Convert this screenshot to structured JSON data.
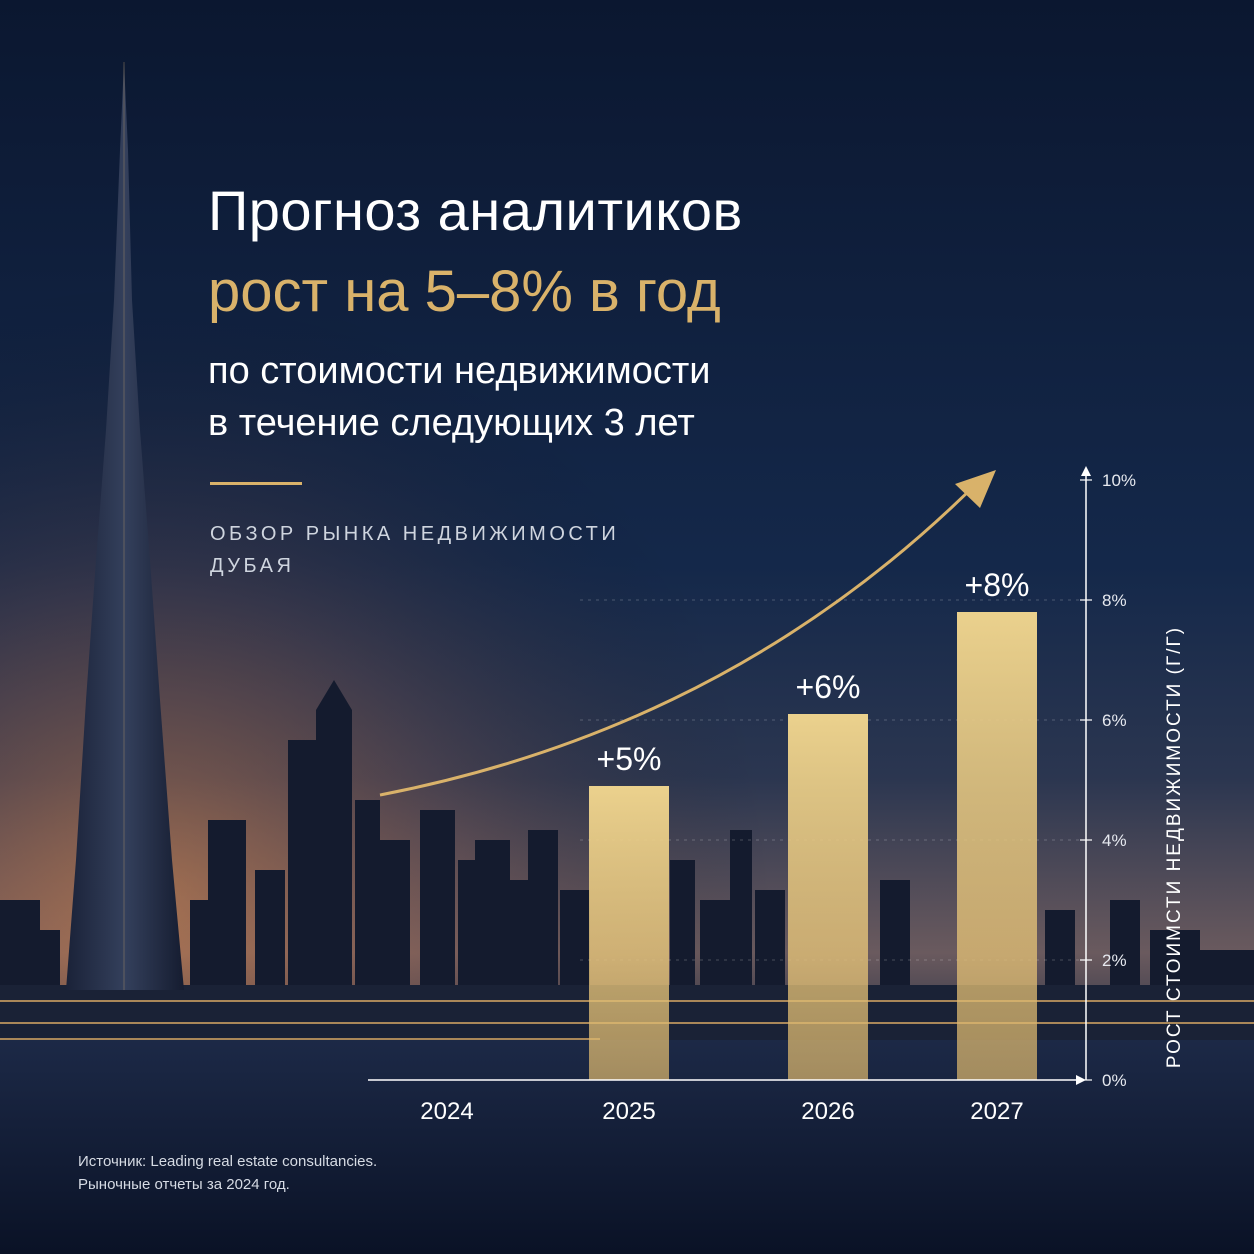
{
  "header": {
    "title": "Прогноз аналитиков",
    "subtitle": "рост на 5–8% в год",
    "description_line1": "по стоимости недвижимости",
    "description_line2": "в течение следующих 3 лет",
    "overline_line1": "ОБЗОР РЫНКА НЕДВИЖИМОСТИ",
    "overline_line2": "ДУБАЯ"
  },
  "footer": {
    "source_line1": "Источник: Leading real estate consultancies.",
    "source_line2": "Рыночные отчеты за 2024 год."
  },
  "colors": {
    "accent_gold": "#d9b26a",
    "bar_gold": "#f0d08a",
    "text_white": "#ffffff",
    "sky_top": "#0e1a33"
  },
  "chart_data": {
    "type": "bar",
    "categories": [
      "2024",
      "2025",
      "2026",
      "2027"
    ],
    "values": [
      null,
      4.9,
      6.1,
      7.8
    ],
    "data_labels": [
      "",
      "+5%",
      "+6%",
      "+8%"
    ],
    "ylabel": "РОСТ СТОИМСТИ НЕДВИЖИМОСТИ (Г/Г)",
    "yticks": [
      "0%",
      "2%",
      "4%",
      "6%",
      "8%",
      "10%"
    ],
    "ylim": [
      0,
      10
    ],
    "grid": true,
    "trend_arrow": "upward"
  }
}
